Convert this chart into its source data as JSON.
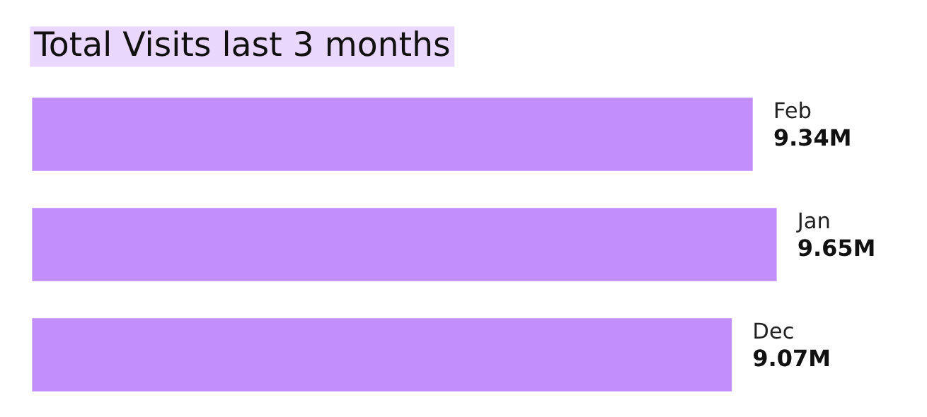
{
  "chart_data": {
    "type": "bar",
    "orientation": "horizontal",
    "title": "Total Visits last 3 months",
    "categories": [
      "Feb",
      "Jan",
      "Dec"
    ],
    "values": [
      9.34,
      9.65,
      9.07
    ],
    "value_labels": [
      "9.34M",
      "9.65M",
      "9.07M"
    ],
    "color": "#c28efc"
  }
}
